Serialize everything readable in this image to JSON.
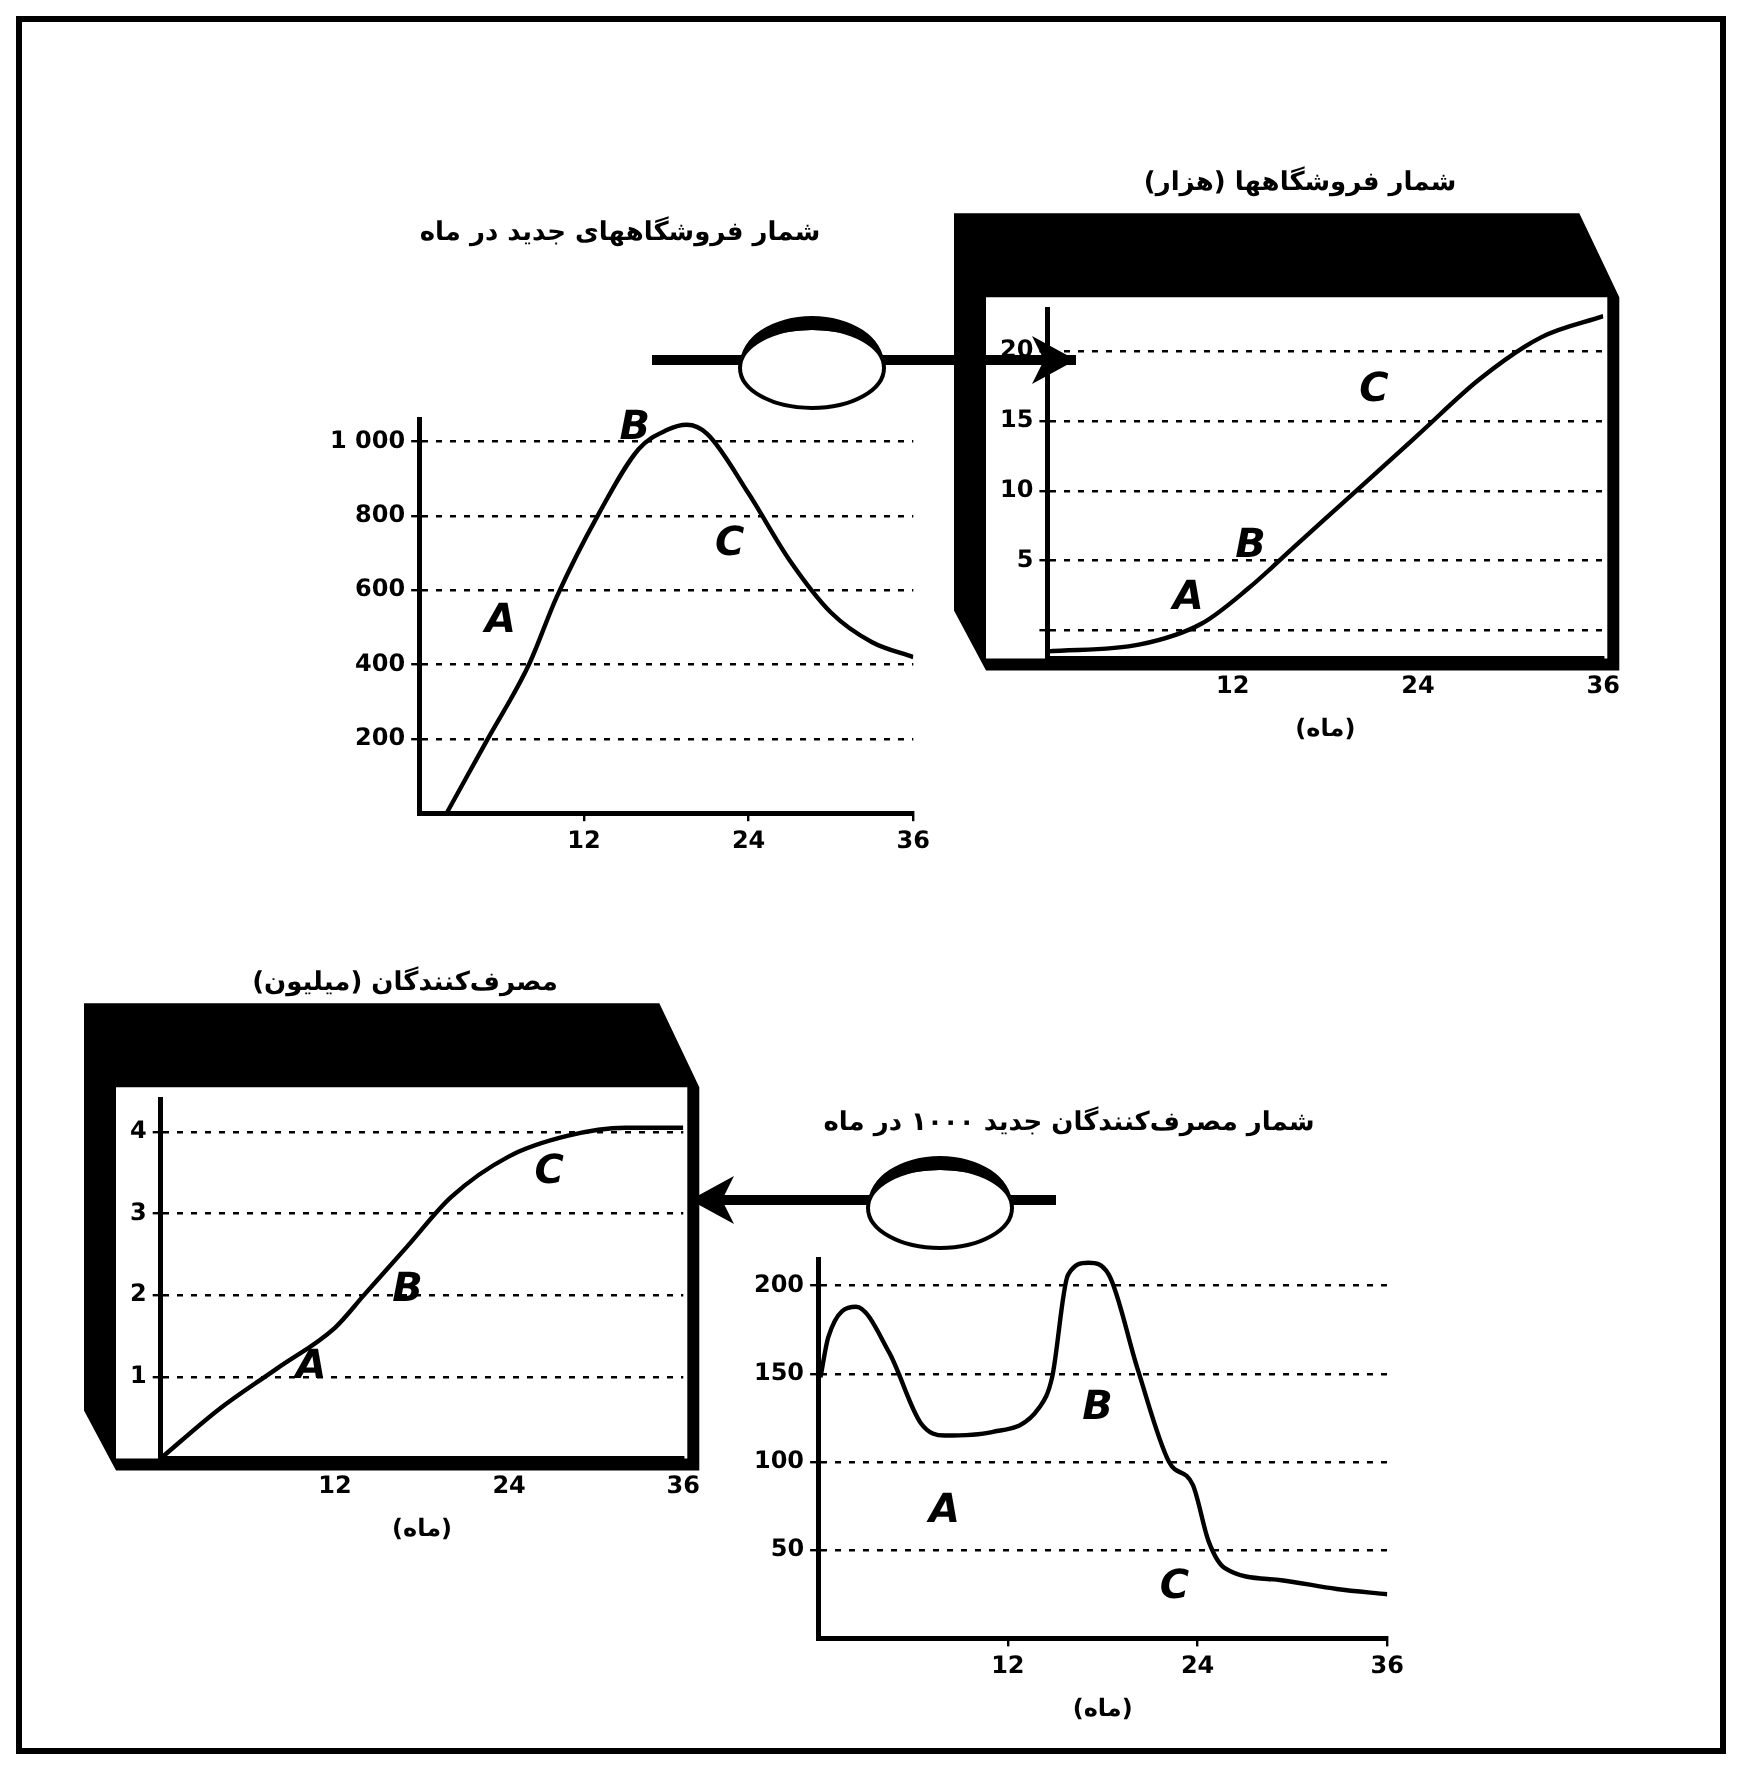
{
  "chart_data": [
    {
      "type": "line",
      "title": "شمار فروشگاههای جدید در ماه",
      "x": [
        2,
        5,
        8,
        10,
        13,
        16,
        18,
        19.5,
        21,
        24,
        27,
        30,
        33,
        36
      ],
      "series": [
        {
          "color": "#000000",
          "values": [
            0,
            200,
            400,
            580,
            800,
            980,
            1030,
            1045,
            1020,
            860,
            680,
            540,
            460,
            420
          ]
        }
      ],
      "xlim": [
        0,
        36
      ],
      "xticks": [
        12,
        24,
        36
      ],
      "ylim": [
        0,
        1060
      ],
      "yticks": [
        200,
        400,
        600,
        800,
        {
          "value": 1000,
          "label": "1 000"
        }
      ],
      "grid": "y",
      "marker": "none",
      "annotations": [
        {
          "text": "A",
          "x": 10,
          "y": 580
        },
        {
          "text": "B",
          "x": 16,
          "y": 980
        },
        {
          "text": "C",
          "x": 27,
          "y": 680
        }
      ]
    },
    {
      "type": "line",
      "title": "شمار فروشگاهها (هزار)",
      "xlabel": "(ماه)",
      "x": [
        0,
        6,
        10,
        13,
        16,
        20,
        24,
        28,
        32,
        36
      ],
      "series": [
        {
          "color": "#000000",
          "values": [
            -1.5,
            -1,
            0.5,
            3,
            6,
            10,
            14,
            18,
            21,
            22.5
          ]
        }
      ],
      "xlim": [
        0,
        36
      ],
      "xticks": [
        12,
        24,
        36
      ],
      "ylim": [
        -2,
        23
      ],
      "yticks": [
        {
          "value": 0,
          "label": null
        },
        5,
        10,
        15,
        20
      ],
      "grid": "y",
      "marker": "none",
      "annotations": [
        {
          "text": "A",
          "x": 13,
          "y": 3
        },
        {
          "text": "B",
          "x": 16,
          "y": 6
        },
        {
          "text": "C",
          "x": 24,
          "y": 14
        }
      ]
    },
    {
      "type": "line",
      "title": "مصرف‌کنندگان (میلیون)",
      "xlabel": "(ماه)",
      "x": [
        0,
        4,
        8,
        12,
        14,
        17,
        20,
        24,
        28,
        32,
        36
      ],
      "series": [
        {
          "color": "#000000",
          "values": [
            0,
            0.6,
            1.1,
            1.6,
            2,
            2.6,
            3.2,
            3.7,
            3.95,
            4.05,
            4.05
          ]
        }
      ],
      "xlim": [
        0,
        36
      ],
      "xticks": [
        12,
        24,
        36
      ],
      "ylim": [
        0,
        4.4
      ],
      "yticks": [
        1,
        2,
        3,
        4
      ],
      "grid": "y",
      "marker": "none",
      "annotations": [
        {
          "text": "A",
          "x": 12,
          "y": 1.6
        },
        {
          "text": "B",
          "x": 17,
          "y": 2.6
        },
        {
          "text": "C",
          "x": 24,
          "y": 3.7
        }
      ]
    },
    {
      "type": "line",
      "title": "شمار مصرف‌کنندگان جدید ۱۰۰۰ در ماه",
      "xlabel": "(ماه)",
      "x": [
        0.15,
        0.65,
        2.4,
        4.5,
        6.5,
        8,
        11,
        14,
        14.8,
        15.8,
        17.1,
        18.4,
        20.2,
        22.2,
        23.7,
        24.7,
        25.7,
        29.3,
        32.8,
        36
      ],
      "series": [
        {
          "color": "#000000",
          "values": [
            148,
            171,
            188,
            162,
            122,
            115,
            117,
            131,
            148,
            206,
            213,
            206,
            153,
            100,
            87,
            55,
            40,
            33,
            28,
            25
          ]
        }
      ],
      "xlim": [
        0,
        36
      ],
      "xticks": [
        12,
        24,
        36
      ],
      "ylim": [
        0,
        215
      ],
      "yticks": [
        50,
        100,
        150,
        200
      ],
      "grid": "y",
      "marker": "none",
      "annotations": [
        {
          "text": "A",
          "x": 8,
          "y": 115
        },
        {
          "text": "B",
          "x": 20.2,
          "y": 153
        },
        {
          "text": "C",
          "x": 25.7,
          "y": 40
        }
      ]
    }
  ]
}
